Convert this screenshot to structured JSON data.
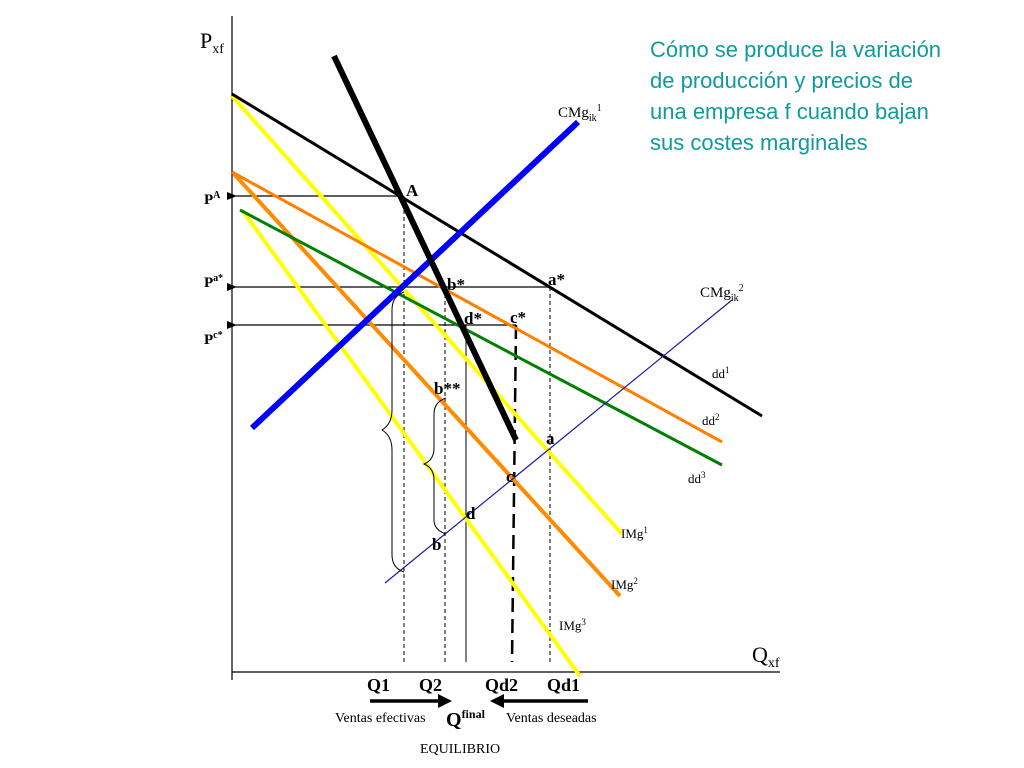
{
  "title_lines": [
    "Cómo se produce la variación",
    "de producción y precios de",
    "una empresa f cuando bajan",
    "sus costes marginales"
  ],
  "axes": {
    "y_label": "P",
    "y_sub": "xf",
    "x_label": "Q",
    "x_sub": "xf"
  },
  "price_labels": [
    {
      "main": "P",
      "sup": "A"
    },
    {
      "main": "P",
      "sup": "a*"
    },
    {
      "main": "P",
      "sup": "c*"
    }
  ],
  "quantity_labels": [
    "Q1",
    "Q2",
    "Qd2",
    "Qd1"
  ],
  "curves": {
    "cmg1": {
      "main": "CMg",
      "sub": "ik",
      "sup": "1",
      "color": "#0000ff"
    },
    "cmg2": {
      "main": "CMg",
      "sub": "ik",
      "sup": "2",
      "color": "#1a1aa6"
    },
    "dd1": {
      "main": "dd",
      "sup": "1",
      "color": "#000000"
    },
    "dd2": {
      "main": "dd",
      "sup": "2",
      "color": "#ff7f00"
    },
    "dd3": {
      "main": "dd",
      "sup": "3",
      "color": "#008000"
    },
    "img1": {
      "main": "IMg",
      "sup": "1",
      "color": "#ffff00"
    },
    "img2": {
      "main": "IMg",
      "sup": "2",
      "color": "#ff8c00"
    },
    "img3": {
      "main": "IMg",
      "sup": "3",
      "color": "#ffff00"
    },
    "reaction": {
      "color": "#000000"
    }
  },
  "points": {
    "A": "A",
    "a_star": "a*",
    "b_star": "b*",
    "d_star": "d*",
    "c_star": "c*",
    "b_2star": "b**",
    "a": "a",
    "c": "c",
    "d": "d",
    "b": "b"
  },
  "bottom": {
    "ventas_efectivas": "Ventas efectivas",
    "q_final_main": "Q",
    "q_final_sup": "final",
    "ventas_deseadas": "Ventas deseadas",
    "equilibrio": "EQUILIBRIO"
  }
}
